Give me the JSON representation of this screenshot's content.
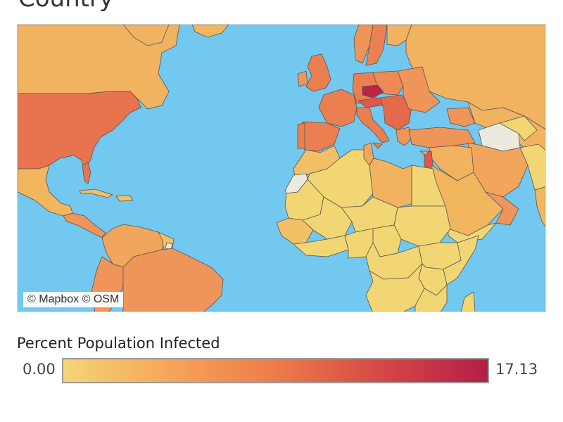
{
  "title": "Country",
  "map": {
    "attribution": "© Mapbox © OSM",
    "ocean_color": "#73c8ef",
    "border_color": "#555555"
  },
  "legend": {
    "title": "Percent Population Infected",
    "min_label": "0.00",
    "max_label": "17.13",
    "min_value": 0.0,
    "max_value": 17.13,
    "colors": [
      "#f3d675",
      "#f6a55a",
      "#ed7c4a",
      "#d54845",
      "#b41e48"
    ]
  }
}
